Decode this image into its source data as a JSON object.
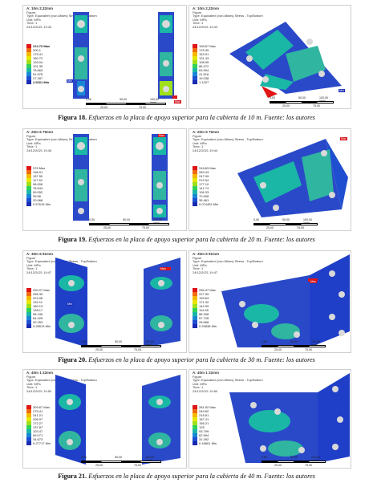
{
  "legend_colors": [
    "#e01515",
    "#f06a10",
    "#f5b800",
    "#e6e600",
    "#9fe01a",
    "#2fd35a",
    "#1bb7a6",
    "#1a86d6",
    "#1f4fd0",
    "#1a2bb3"
  ],
  "figures": [
    {
      "left": {
        "title": "A: 10m 2,32mm",
        "type_lines": [
          "Figure",
          "Type: Equivalent (von-Mises) Stress - Top/Bottom",
          "Unit: MPa",
          "Time: 1",
          "24/12/2021 19:43"
        ],
        "legend": [
          "224.79",
          "200.1",
          "175.41",
          "150.72",
          "126.04",
          "101.35",
          "76.663",
          "51.975",
          "27.287",
          "2.6001"
        ],
        "scale": {
          "t0": "0,00",
          "t1": "50,00",
          "t2": "100,00 (mm)",
          "b1": "25,00",
          "b2": "75,00"
        }
      },
      "right": {
        "title": "A: 10m 2,32mm",
        "type_lines": [
          "Figure",
          "Type: Equivalent (von-Mises) Stress - Top/Bottom",
          "Unit: MPa",
          "Time: 1",
          "24/12/2021 19:43"
        ],
        "legend": [
          "198.87 Max",
          "176.39",
          "153.91",
          "131.43",
          "108.95",
          "86.472",
          "63.994",
          "41.516",
          "19.038",
          "1.1207"
        ],
        "scale": {
          "t0": "0,00",
          "t1": "50,00",
          "t2": "100,00 (mm)",
          "b1": "25,00",
          "b2": "75,00"
        }
      },
      "caption_label": "Figura 18.",
      "caption_text": " Esfuerzos en la placa de apoyo superior para la cubierta de 10 m. Fuente: los autores"
    },
    {
      "left": {
        "title": "A: 20m 6 75mm",
        "type_lines": [
          "Figure",
          "Type: Equivalent (von-Mises) Stress - Top/Bottom",
          "Unit: MPa",
          "Time: 1",
          "24/12/2021 19:45"
        ],
        "legend": [
          "376 Max",
          "196.01",
          "157.50",
          "117.52",
          "98.006",
          "78.544",
          "59.052",
          "39.56",
          "20.068",
          "0.57615 Min"
        ],
        "scale": {
          "t0": "0,00",
          "t1": "50,00",
          "t2": "100,00 (mm)",
          "b1": "25,00",
          "b2": "75,00"
        }
      },
      "right": {
        "title": "A: 20m 6 75mm",
        "type_lines": [
          "Figure",
          "Type: Equivalent (von-Mises) Stress - Top/Bottom",
          "Unit: MPa",
          "Time: 1",
          "24/12/2021 19:44"
        ],
        "legend": [
          "318.83 Max",
          "283.43",
          "247.99",
          "212.54",
          "177.10",
          "141.74",
          "106.33",
          "70.908",
          "35.481",
          "0.074452 Min"
        ],
        "scale": {
          "t0": "0,00",
          "t1": "50,00",
          "t2": "100,00 (mm)",
          "b1": "25,00",
          "b2": "75,00"
        }
      },
      "caption_label": "Figura 19.",
      "caption_text": " Esfuerzos en la placa de apoyo superior para la cubierta de 20 m. Fuente: los autores"
    },
    {
      "left": {
        "title": "A: 30m 6 91mm",
        "type_lines": [
          "Figure",
          "Type: Equivalent (von-Mises) Stress - Top/Bottom",
          "Unit: MPa",
          "Time: 1",
          "24/12/2021 19:47"
        ],
        "legend": [
          "290.07 Max",
          "256.39",
          "224.08",
          "192.11",
          "160.13",
          "128.17",
          "96.196",
          "64.226",
          "32.253",
          "0.28513 Min"
        ],
        "scale": {
          "t0": "0,00",
          "t1": "50,00",
          "t2": "100,00 (mm)",
          "b1": "25,00",
          "b2": "75,00"
        }
      },
      "right": {
        "title": "A: 30m 6 91mm",
        "type_lines": [
          "Figure",
          "Type: Equivalent (von-Mises) Stress - Top/Bottom",
          "Unit: MPa",
          "Time: 1",
          "24/12/2021 19:47"
        ],
        "legend": [
          "256.37 Max",
          "227.99",
          "199.63",
          "171.32",
          "142.99",
          "114.65",
          "86.308",
          "57.728",
          "28.668",
          "0.29838 Min"
        ],
        "scale": {
          "t0": "0,00",
          "t1": "50,00",
          "t2": "100,00 (mm)",
          "b1": "25,00",
          "b2": "75,00"
        }
      },
      "caption_label": "Figura 20.",
      "caption_text": " Esfuerzos en la placa de apoyo superior para la cubierta de 30 m. Fuente: los autores"
    },
    {
      "left": {
        "title": "A: 40m 1 22mm",
        "type_lines": [
          "Figure",
          "Type: Equivalent (von-Mises) Stress - Top/Bottom",
          "Unit: MPa",
          "Time: 1",
          "24/12/2021 19:50"
        ],
        "legend": [
          "309.67 Max",
          "275.41",
          "241.21",
          "206.97",
          "172.27",
          "137.87",
          "103.47",
          "69.071",
          "34.673",
          "0.27717 Min"
        ],
        "scale": {
          "t0": "0,00",
          "t1": "50,00",
          "t2": "100,00 (mm)",
          "b1": "25,00",
          "b2": "75,00"
        }
      },
      "right": {
        "title": "A: 40m 1 22mm",
        "type_lines": [
          "Figure",
          "Type: Equivalent (von-Mises) Stress - Top/Bottom",
          "Unit: MPa",
          "Time: 1",
          "24/12/2021 19:50"
        ],
        "legend": [
          "281.92 Max",
          "249.82",
          "218.51",
          "187.41",
          "156.21",
          "125",
          "93.799",
          "62.594",
          "31.392",
          "0.18801 Min"
        ],
        "scale": {
          "t0": "0,00",
          "t1": "50,00",
          "t2": "100,00 (mm)",
          "b1": "25,00",
          "b2": "75,00"
        }
      },
      "caption_label": "Figura 21.",
      "caption_text": " Esfuerzos en la placa de apoyo superior para la cubierta de 40 m. Fuente: los autores"
    }
  ],
  "tags": {
    "max": "Max",
    "min": "Min"
  }
}
